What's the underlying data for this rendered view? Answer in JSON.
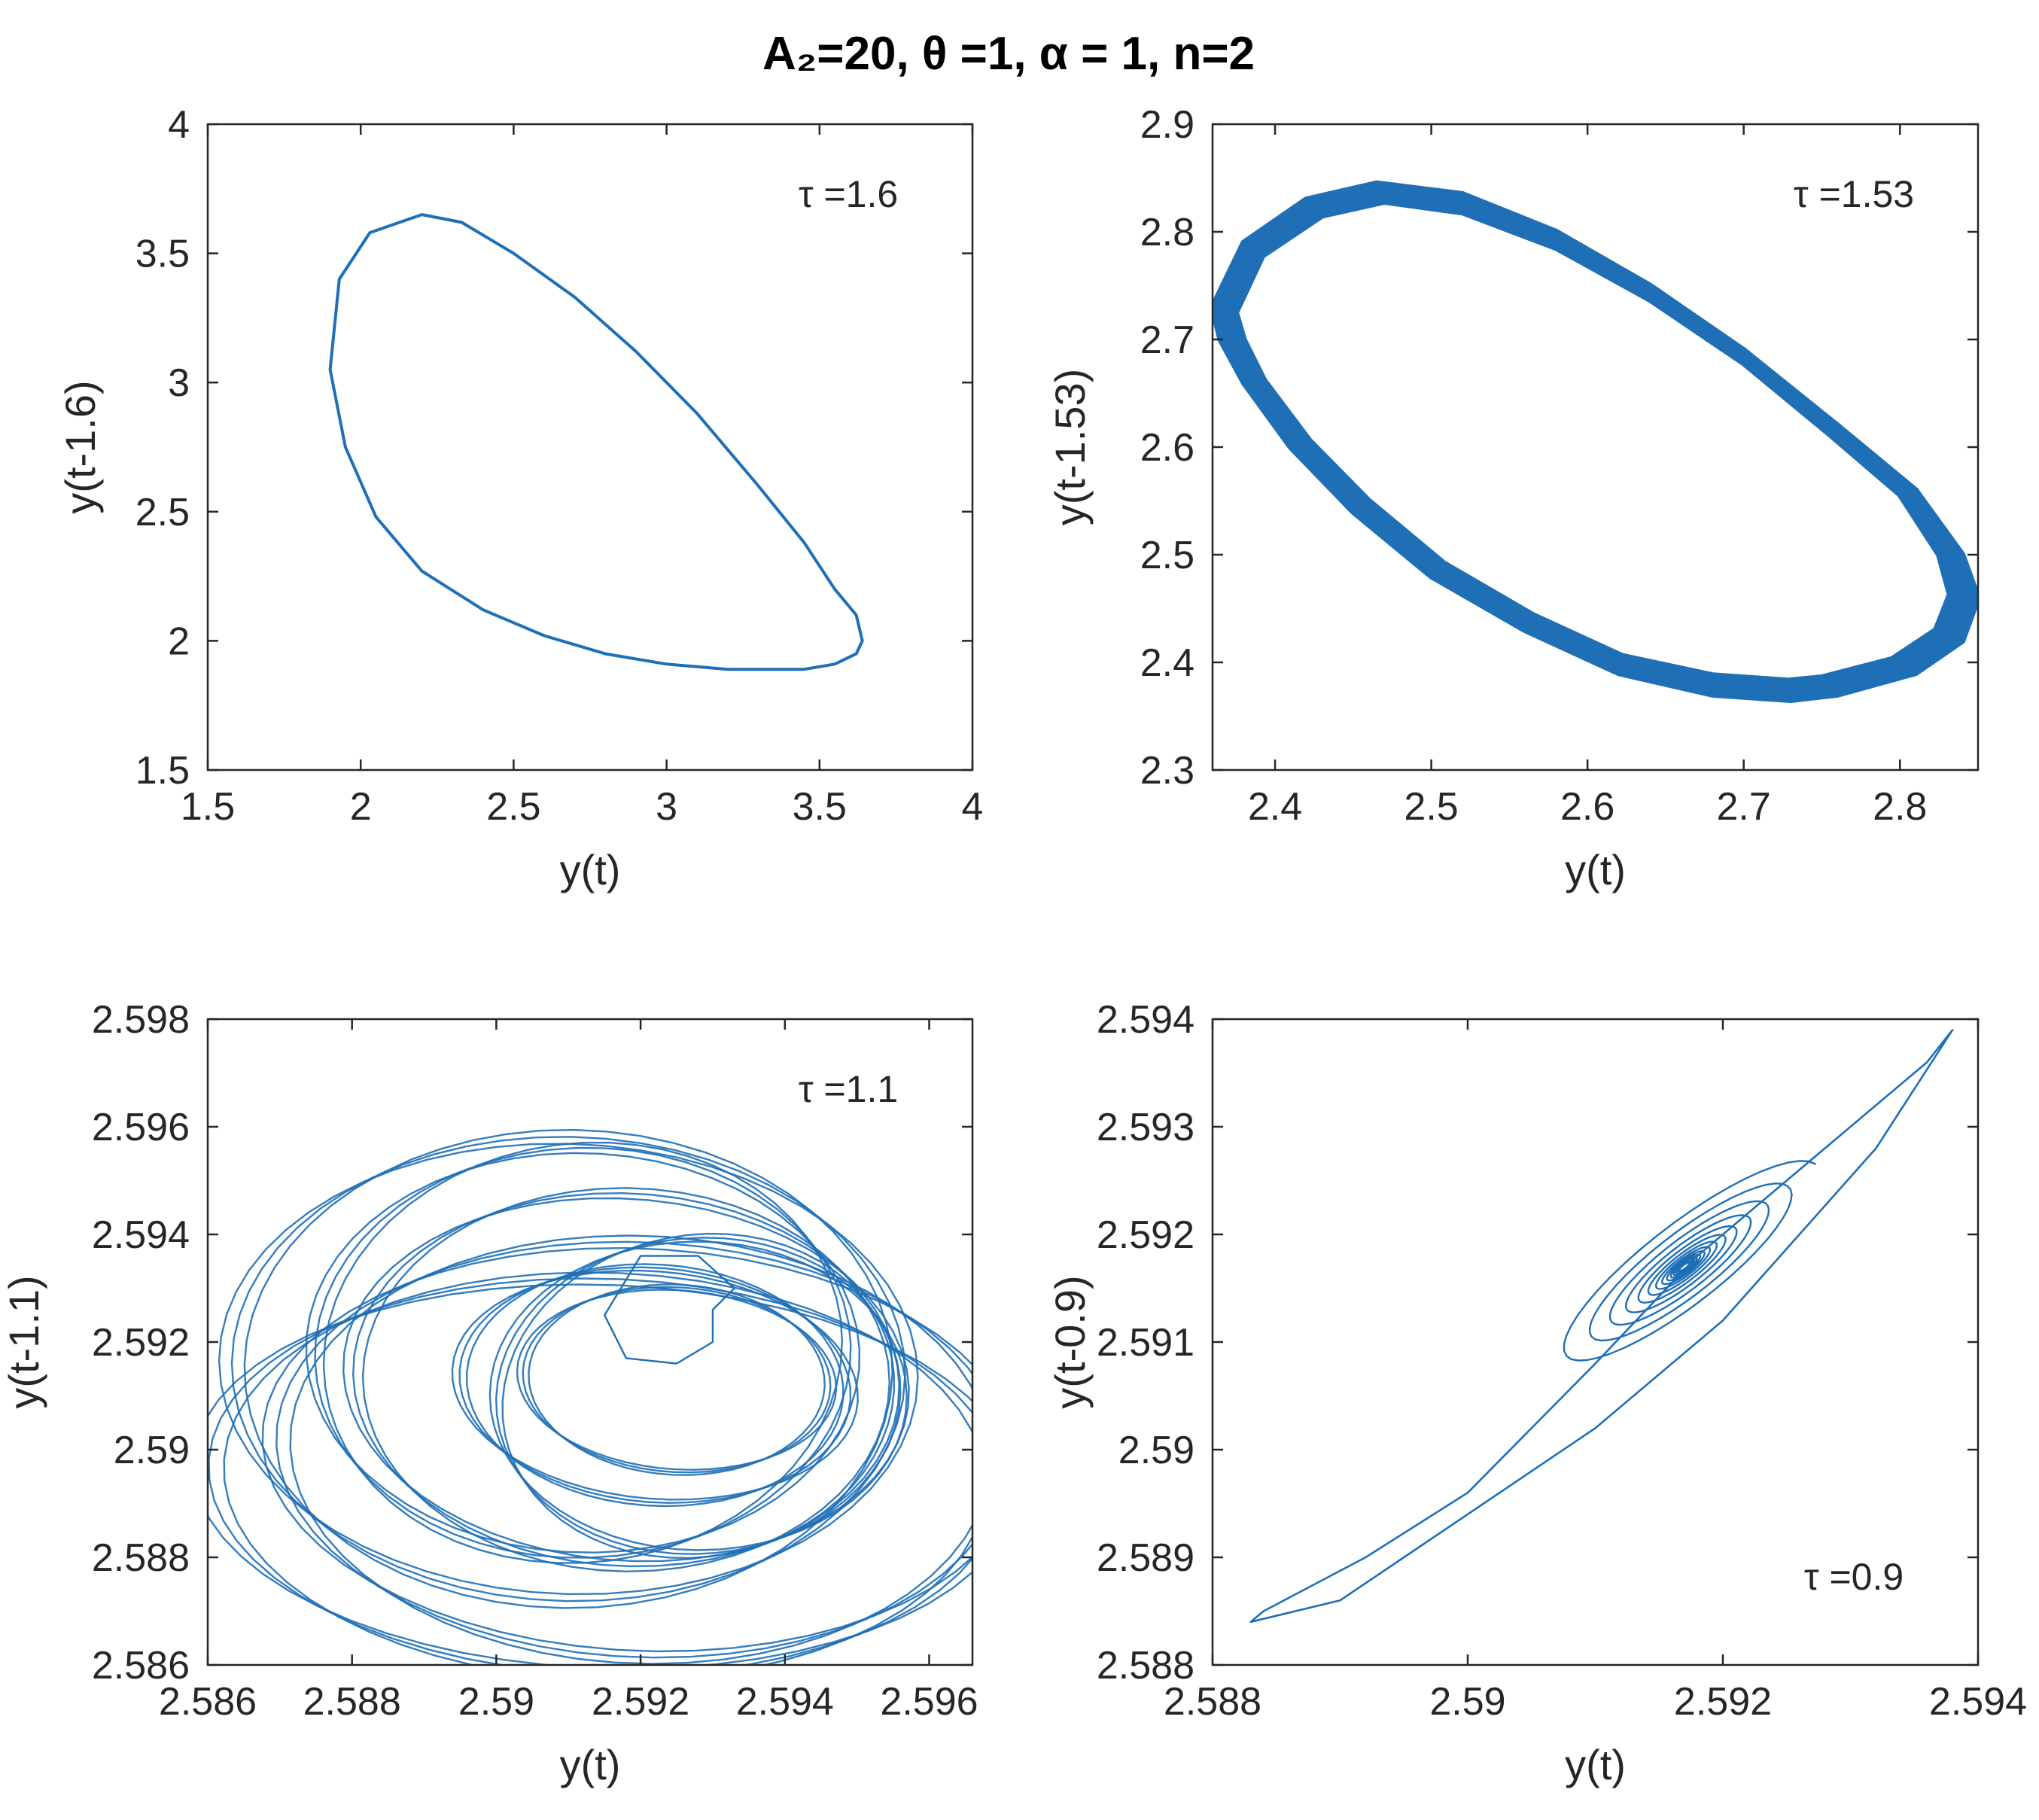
{
  "figure_title": "A₂=20, θ =1, α = 1, n=2",
  "colors": {
    "trace": "#1f6fb6",
    "axes": "#262626",
    "background": "#ffffff"
  },
  "chart_data": [
    {
      "type": "line",
      "subtype": "phase-portrait",
      "title": "",
      "annotation": "τ =1.6",
      "annotation_position": "top-right",
      "xlabel": "y(t)",
      "ylabel": "y(t-1.6)",
      "xlim": [
        1.5,
        4
      ],
      "ylim": [
        1.5,
        4
      ],
      "xticks": [
        1.5,
        2,
        2.5,
        3,
        3.5,
        4
      ],
      "xtick_labels": [
        "1.5",
        "2",
        "2.5",
        "3",
        "3.5",
        "4"
      ],
      "yticks": [
        1.5,
        2,
        2.5,
        3,
        3.5,
        4
      ],
      "ytick_labels": [
        "1.5",
        "2",
        "2.5",
        "3",
        "3.5",
        "4"
      ],
      "trajectory": "limit cycle",
      "series": [
        {
          "name": "orbit",
          "x": [
            1.9,
            1.93,
            2.03,
            2.2,
            2.33,
            2.5,
            2.7,
            2.9,
            3.1,
            3.3,
            3.45,
            3.55,
            3.62,
            3.64,
            3.62,
            3.55,
            3.45,
            3.3,
            3.2,
            3.0,
            2.8,
            2.6,
            2.4,
            2.2,
            2.05,
            1.95,
            1.9
          ],
          "y": [
            3.05,
            3.4,
            3.58,
            3.65,
            3.62,
            3.5,
            3.33,
            3.12,
            2.88,
            2.6,
            2.38,
            2.2,
            2.1,
            2.0,
            1.95,
            1.91,
            1.89,
            1.89,
            1.89,
            1.91,
            1.95,
            2.02,
            2.12,
            2.27,
            2.48,
            2.75,
            3.05
          ]
        }
      ]
    },
    {
      "type": "line",
      "subtype": "phase-portrait",
      "title": "",
      "annotation": "τ =1.53",
      "annotation_position": "top-right",
      "xlabel": "y(t)",
      "ylabel": "y(t-1.53)",
      "xlim": [
        2.36,
        2.85
      ],
      "ylim": [
        2.3,
        2.9
      ],
      "xticks": [
        2.4,
        2.5,
        2.6,
        2.7,
        2.8
      ],
      "xtick_labels": [
        "2.4",
        "2.5",
        "2.6",
        "2.7",
        "2.8"
      ],
      "yticks": [
        2.3,
        2.4,
        2.5,
        2.6,
        2.7,
        2.8,
        2.9
      ],
      "ytick_labels": [
        "2.3",
        "2.4",
        "2.5",
        "2.6",
        "2.7",
        "2.8",
        "2.9"
      ],
      "trajectory": "thick limit cycle band",
      "series": [
        {
          "name": "outer orbit",
          "x": [
            2.36,
            2.38,
            2.42,
            2.465,
            2.52,
            2.58,
            2.64,
            2.7,
            2.76,
            2.81,
            2.84,
            2.85,
            2.84,
            2.81,
            2.76,
            2.73,
            2.68,
            2.62,
            2.56,
            2.5,
            2.45,
            2.41,
            2.38,
            2.365,
            2.36
          ],
          "y": [
            2.73,
            2.79,
            2.83,
            2.845,
            2.835,
            2.8,
            2.75,
            2.69,
            2.62,
            2.56,
            2.5,
            2.46,
            2.42,
            2.39,
            2.37,
            2.365,
            2.37,
            2.39,
            2.43,
            2.48,
            2.54,
            2.6,
            2.66,
            2.7,
            2.73
          ]
        },
        {
          "name": "inner orbit",
          "x": [
            2.375,
            2.392,
            2.43,
            2.47,
            2.52,
            2.58,
            2.64,
            2.7,
            2.755,
            2.8,
            2.825,
            2.832,
            2.823,
            2.795,
            2.75,
            2.728,
            2.68,
            2.622,
            2.565,
            2.508,
            2.46,
            2.422,
            2.393,
            2.38,
            2.375
          ],
          "y": [
            2.725,
            2.778,
            2.815,
            2.828,
            2.818,
            2.785,
            2.737,
            2.678,
            2.612,
            2.556,
            2.5,
            2.463,
            2.43,
            2.403,
            2.386,
            2.383,
            2.388,
            2.406,
            2.444,
            2.492,
            2.55,
            2.606,
            2.662,
            2.7,
            2.725
          ]
        }
      ]
    },
    {
      "type": "line",
      "subtype": "phase-portrait",
      "title": "",
      "annotation": "τ =1.1",
      "annotation_position": "top-right",
      "xlabel": "y(t)",
      "ylabel": "y(t-1.1)",
      "xlim": [
        2.586,
        2.5966
      ],
      "ylim": [
        2.586,
        2.598
      ],
      "xticks": [
        2.586,
        2.588,
        2.59,
        2.592,
        2.594,
        2.596
      ],
      "xtick_labels": [
        "2.586",
        "2.588",
        "2.59",
        "2.592",
        "2.594",
        "2.596"
      ],
      "yticks": [
        2.586,
        2.588,
        2.59,
        2.592,
        2.594,
        2.596,
        2.598
      ],
      "ytick_labels": [
        "2.586",
        "2.588",
        "2.59",
        "2.592",
        "2.594",
        "2.596",
        "2.598"
      ],
      "trajectory": "quasi-periodic / chaotic tangle",
      "loops": [
        {
          "cx": 2.591,
          "cy": 2.5915,
          "rx": 0.00455,
          "ry": 0.0045,
          "tilt": -0.2
        },
        {
          "cx": 2.5918,
          "cy": 2.5913,
          "rx": 0.0038,
          "ry": 0.0037,
          "tilt": -0.35
        },
        {
          "cx": 2.5922,
          "cy": 2.5912,
          "rx": 0.0027,
          "ry": 0.0023,
          "tilt": -0.3
        },
        {
          "cx": 2.5925,
          "cy": 2.5913,
          "rx": 0.0021,
          "ry": 0.0018,
          "tilt": -0.25
        },
        {
          "cx": 2.5915,
          "cy": 2.5895,
          "rx": 0.0053,
          "ry": 0.0038,
          "tilt": -0.1
        },
        {
          "cx": 2.592,
          "cy": 2.59,
          "rx": 0.0049,
          "ry": 0.004,
          "tilt": -0.15
        },
        {
          "cx": 2.5912,
          "cy": 2.5918,
          "rx": 0.0038,
          "ry": 0.0042,
          "tilt": -0.45
        },
        {
          "cx": 2.5928,
          "cy": 2.591,
          "rx": 0.0029,
          "ry": 0.0033,
          "tilt": -0.5
        }
      ],
      "transient": {
        "x": [
          2.5933,
          2.5928,
          2.592,
          2.5915,
          2.5918,
          2.5925,
          2.593,
          2.593,
          2.5933
        ],
        "y": [
          2.593,
          2.5936,
          2.5936,
          2.5925,
          2.5917,
          2.5916,
          2.592,
          2.5926,
          2.593
        ]
      }
    },
    {
      "type": "line",
      "subtype": "phase-portrait",
      "title": "",
      "annotation": "τ =0.9",
      "annotation_position": "bottom-right",
      "xlabel": "y(t)",
      "ylabel": "y(t-0.9)",
      "xlim": [
        2.588,
        2.594
      ],
      "ylim": [
        2.588,
        2.594
      ],
      "xticks": [
        2.588,
        2.59,
        2.592,
        2.594
      ],
      "xtick_labels": [
        "2.588",
        "2.59",
        "2.592",
        "2.594"
      ],
      "yticks": [
        2.588,
        2.589,
        2.59,
        2.591,
        2.592,
        2.593,
        2.594
      ],
      "ytick_labels": [
        "2.588",
        "2.589",
        "2.59",
        "2.591",
        "2.592",
        "2.593",
        "2.594"
      ],
      "trajectory": "damped spiral toward fixed point",
      "spiral_center": [
        2.5917,
        2.5917
      ],
      "outer_orbit": {
        "x": [
          2.5883,
          2.589,
          2.59,
          2.591,
          2.592,
          2.5932,
          2.5938,
          2.5936,
          2.5925,
          2.5918,
          2.591,
          2.59,
          2.5892,
          2.5884,
          2.5883
        ],
        "y": [
          2.5884,
          2.5886,
          2.5894,
          2.5902,
          2.5912,
          2.5928,
          2.5939,
          2.5936,
          2.5925,
          2.5918,
          2.5908,
          2.5896,
          2.589,
          2.5885,
          2.5884
        ]
      }
    }
  ]
}
